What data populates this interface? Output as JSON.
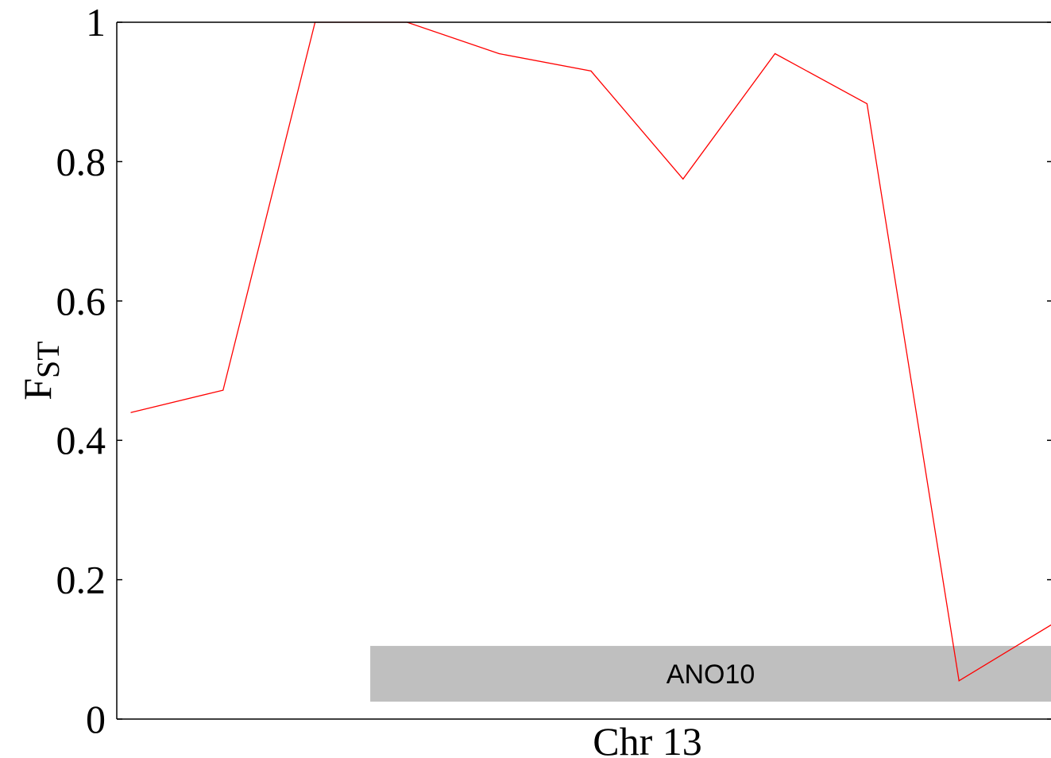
{
  "chart_data": {
    "type": "line",
    "title": "",
    "xlabel": "Chr 13",
    "ylabel": "F",
    "ylabel_subscript": "ST",
    "ylim": [
      0,
      1
    ],
    "yticks": [
      {
        "value": 0,
        "label": "0"
      },
      {
        "value": 0.2,
        "label": "0.2"
      },
      {
        "value": 0.4,
        "label": "0.4"
      },
      {
        "value": 0.6,
        "label": "0.6"
      },
      {
        "value": 0.8,
        "label": "0.8"
      },
      {
        "value": 1,
        "label": "1"
      }
    ],
    "xlim": [
      0,
      10
    ],
    "grid": false,
    "series": [
      {
        "color": "#ff0000",
        "x": [
          0,
          1,
          2,
          3,
          4,
          5,
          6,
          7,
          8,
          9,
          10
        ],
        "values": [
          0.44,
          0.472,
          1.0,
          1.0,
          0.955,
          0.93,
          0.775,
          0.955,
          0.883,
          0.055,
          0.135
        ]
      }
    ],
    "annotations": [
      {
        "type": "gene-region",
        "label": "ANO10",
        "x_start": 2.6,
        "x_end": 10,
        "y_start": 0.025,
        "y_end": 0.105,
        "color": "#bfbfbf"
      }
    ]
  }
}
